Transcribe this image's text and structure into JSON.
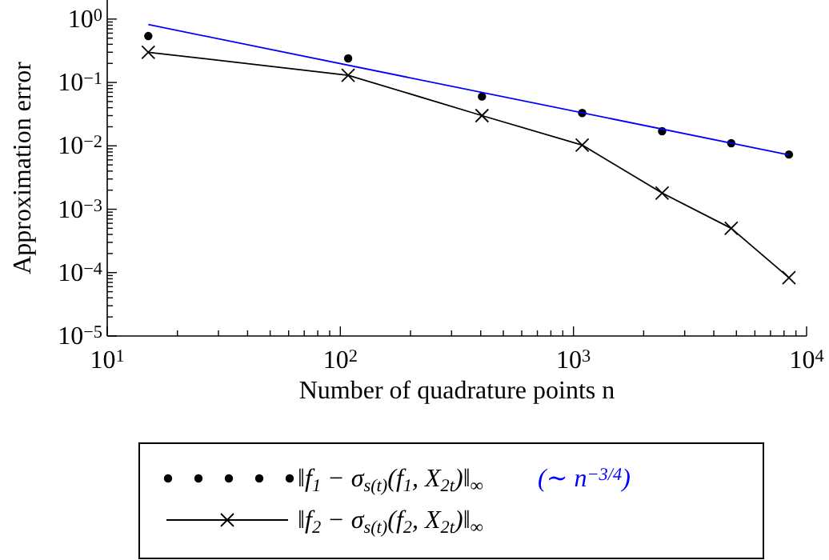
{
  "chart_data": {
    "type": "line",
    "xlabel": "Number of quadrature points n",
    "ylabel": "Approximation error",
    "log": "xy",
    "grid": false,
    "legend": "bottom",
    "xlim": [
      10,
      10000
    ],
    "ylim": [
      1e-05,
      2
    ],
    "xticks": [
      {
        "value": 10,
        "label": "10$^{1}$"
      },
      {
        "value": 20,
        "label": null
      },
      {
        "value": 30,
        "label": null
      },
      {
        "value": 40,
        "label": null
      },
      {
        "value": 50,
        "label": null
      },
      {
        "value": 60,
        "label": null
      },
      {
        "value": 70,
        "label": null
      },
      {
        "value": 80,
        "label": null
      },
      {
        "value": 90,
        "label": null
      },
      {
        "value": 100,
        "label": "10$^{2}$"
      },
      {
        "value": 200,
        "label": null
      },
      {
        "value": 300,
        "label": null
      },
      {
        "value": 400,
        "label": null
      },
      {
        "value": 500,
        "label": null
      },
      {
        "value": 600,
        "label": null
      },
      {
        "value": 700,
        "label": null
      },
      {
        "value": 800,
        "label": null
      },
      {
        "value": 900,
        "label": null
      },
      {
        "value": 1000,
        "label": "10$^{3}$"
      },
      {
        "value": 2000,
        "label": null
      },
      {
        "value": 3000,
        "label": null
      },
      {
        "value": 4000,
        "label": null
      },
      {
        "value": 5000,
        "label": null
      },
      {
        "value": 6000,
        "label": null
      },
      {
        "value": 7000,
        "label": null
      },
      {
        "value": 8000,
        "label": null
      },
      {
        "value": 9000,
        "label": null
      },
      {
        "value": 10000,
        "label": "10$^{4}$"
      }
    ],
    "yticks": [
      {
        "value": 1e-05,
        "label": "10$^{−5}$"
      },
      {
        "value": 2e-05,
        "label": null
      },
      {
        "value": 3e-05,
        "label": null
      },
      {
        "value": 4e-05,
        "label": null
      },
      {
        "value": 5e-05,
        "label": null
      },
      {
        "value": 6e-05,
        "label": null
      },
      {
        "value": 7e-05,
        "label": null
      },
      {
        "value": 8e-05,
        "label": null
      },
      {
        "value": 9e-05,
        "label": null
      },
      {
        "value": 0.0001,
        "label": "10$^{−4}$"
      },
      {
        "value": 0.0002,
        "label": null
      },
      {
        "value": 0.0003,
        "label": null
      },
      {
        "value": 0.0004,
        "label": null
      },
      {
        "value": 0.0005,
        "label": null
      },
      {
        "value": 0.0006,
        "label": null
      },
      {
        "value": 0.0007,
        "label": null
      },
      {
        "value": 0.0008,
        "label": null
      },
      {
        "value": 0.0009,
        "label": null
      },
      {
        "value": 0.001,
        "label": "10$^{−3}$"
      },
      {
        "value": 0.002,
        "label": null
      },
      {
        "value": 0.003,
        "label": null
      },
      {
        "value": 0.004,
        "label": null
      },
      {
        "value": 0.005,
        "label": null
      },
      {
        "value": 0.006,
        "label": null
      },
      {
        "value": 0.007,
        "label": null
      },
      {
        "value": 0.008,
        "label": null
      },
      {
        "value": 0.009,
        "label": null
      },
      {
        "value": 0.01,
        "label": "10$^{−2}$"
      },
      {
        "value": 0.02,
        "label": null
      },
      {
        "value": 0.03,
        "label": null
      },
      {
        "value": 0.04,
        "label": null
      },
      {
        "value": 0.05,
        "label": null
      },
      {
        "value": 0.06,
        "label": null
      },
      {
        "value": 0.07,
        "label": null
      },
      {
        "value": 0.08,
        "label": null
      },
      {
        "value": 0.09,
        "label": null
      },
      {
        "value": 0.1,
        "label": "10$^{−1}$"
      },
      {
        "value": 0.2,
        "label": null
      },
      {
        "value": 0.3,
        "label": null
      },
      {
        "value": 0.4,
        "label": null
      },
      {
        "value": 0.5,
        "label": null
      },
      {
        "value": 0.6,
        "label": null
      },
      {
        "value": 0.7,
        "label": null
      },
      {
        "value": 0.8,
        "label": null
      },
      {
        "value": 0.9,
        "label": null
      },
      {
        "value": 1,
        "label": "10$^{0}$"
      }
    ],
    "series": [
      {
        "name": "‖f$_{1}$ − σ$_{s(t)}$(f$_{1}$, X$_{2t}$)‖$_{∞}$",
        "type": "scatter",
        "marker": "circle",
        "color": "#000000",
        "x": [
          15,
          108,
          405,
          1090,
          2400,
          4750,
          8400
        ],
        "values": [
          0.54,
          0.24,
          0.06,
          0.033,
          0.017,
          0.011,
          0.0073
        ]
      },
      {
        "name": "(∼ n$^{−3/4}$)",
        "type": "line",
        "marker": "none",
        "color": "#0000ff",
        "x": [
          15,
          8400
        ],
        "values": [
          0.82,
          0.0072
        ]
      },
      {
        "name": "‖f$_{2}$ − σ$_{s(t)}$(f$_{2}$, X$_{2t}$)‖$_{∞}$",
        "type": "line",
        "marker": "cross",
        "color": "#000000",
        "x": [
          15,
          108,
          405,
          1090,
          2400,
          4750,
          8400
        ],
        "values": [
          0.3,
          0.13,
          0.03,
          0.0103,
          0.0018,
          0.0005,
          8.3e-05
        ]
      }
    ]
  }
}
